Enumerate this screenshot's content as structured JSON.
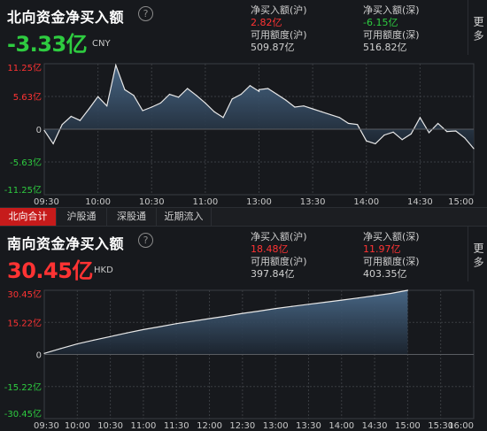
{
  "north": {
    "title": "北向资金净买入额",
    "help_icon": "?",
    "value": "-3.33亿",
    "currency": "CNY",
    "value_color": "#2ecc40",
    "stats": {
      "sh_net_label": "净买入额(沪)",
      "sh_net_value": "2.82亿",
      "sz_net_label": "净买入额(深)",
      "sz_net_value": "-6.15亿",
      "sh_quota_label": "可用额度(沪)",
      "sh_quota_value": "509.87亿",
      "sz_quota_label": "可用额度(深)",
      "sz_quota_value": "516.82亿"
    },
    "more_label": "更多"
  },
  "tabs": [
    {
      "label": "北向合计",
      "active": true
    },
    {
      "label": "沪股通",
      "active": false
    },
    {
      "label": "深股通",
      "active": false
    },
    {
      "label": "近期流入",
      "active": false
    }
  ],
  "south": {
    "title": "南向资金净买入额",
    "help_icon": "?",
    "value": "30.45亿",
    "currency": "HKD",
    "value_color": "#ff3333",
    "stats": {
      "sh_net_label": "净买入额(沪)",
      "sh_net_value": "18.48亿",
      "sz_net_label": "净买入额(深)",
      "sz_net_value": "11.97亿",
      "sh_quota_label": "可用额度(沪)",
      "sh_quota_value": "397.84亿",
      "sz_quota_label": "可用额度(深)",
      "sz_quota_value": "403.35亿"
    },
    "more_label": "更多"
  },
  "colors": {
    "positive": "#ff3333",
    "negative": "#2ecc40",
    "line": "#e8e8e8",
    "fill_top": "#4a6a8a",
    "fill_bottom": "#1c2530",
    "grid": "#3a3d42",
    "axis_text": "#c8c8c8"
  },
  "chart_data": [
    {
      "type": "area",
      "title": "",
      "x": [
        "09:30",
        "09:35",
        "09:40",
        "09:45",
        "09:50",
        "09:55",
        "10:00",
        "10:05",
        "10:10",
        "10:15",
        "10:20",
        "10:25",
        "10:30",
        "10:35",
        "10:40",
        "10:45",
        "10:50",
        "10:55",
        "11:00",
        "11:05",
        "11:10",
        "11:15",
        "11:20",
        "11:25",
        "11:30",
        "13:00",
        "13:05",
        "13:10",
        "13:15",
        "13:20",
        "13:25",
        "13:30",
        "13:35",
        "13:40",
        "13:45",
        "13:50",
        "13:55",
        "14:00",
        "14:05",
        "14:10",
        "14:15",
        "14:20",
        "14:25",
        "14:30",
        "14:35",
        "14:40",
        "14:45",
        "14:50",
        "14:55",
        "15:00"
      ],
      "values": [
        -0.2,
        -2.5,
        0.8,
        2.2,
        1.5,
        3.5,
        5.6,
        4.0,
        11.0,
        6.8,
        5.8,
        3.2,
        3.8,
        4.5,
        6.0,
        5.5,
        7.0,
        5.8,
        4.5,
        3.0,
        2.0,
        5.2,
        6.0,
        7.5,
        6.5,
        6.8,
        7.0,
        6.0,
        5.0,
        3.8,
        4.0,
        3.5,
        3.0,
        2.5,
        2.0,
        1.0,
        0.8,
        -2.0,
        -2.5,
        -1.0,
        -0.5,
        -1.8,
        -0.8,
        2.0,
        -0.6,
        1.0,
        -0.4,
        -0.3,
        -1.5,
        -3.33
      ],
      "xticks": [
        "09:30",
        "10:00",
        "10:30",
        "11:00",
        "13:00",
        "13:30",
        "14:00",
        "14:30",
        "15:00"
      ],
      "yticks": [
        "11.25亿",
        "5.63亿",
        "0",
        "-5.63亿",
        "-11.25亿"
      ],
      "ylim": [
        -11.25,
        11.25
      ],
      "unit": "亿",
      "grid": true
    },
    {
      "type": "area",
      "title": "",
      "x": [
        "09:30",
        "09:45",
        "10:00",
        "10:15",
        "10:30",
        "10:45",
        "11:00",
        "11:15",
        "11:30",
        "11:45",
        "12:00",
        "12:15",
        "12:30",
        "12:45",
        "13:00",
        "13:15",
        "13:30",
        "13:45",
        "14:00",
        "14:15",
        "14:30",
        "14:45",
        "15:00"
      ],
      "values": [
        0.5,
        2.8,
        5.0,
        6.8,
        8.5,
        10.2,
        11.8,
        13.2,
        14.6,
        15.8,
        17.0,
        18.2,
        19.5,
        20.6,
        21.8,
        22.8,
        23.8,
        24.8,
        25.8,
        26.8,
        27.9,
        29.0,
        30.45
      ],
      "xticks": [
        "09:30",
        "10:00",
        "10:30",
        "11:00",
        "11:30",
        "12:00",
        "12:30",
        "13:00",
        "13:30",
        "14:00",
        "14:30",
        "15:00",
        "15:30",
        "16:00"
      ],
      "yticks": [
        "30.45亿",
        "15.22亿",
        "0",
        "-15.22亿",
        "-30.45亿"
      ],
      "ylim": [
        -30.45,
        30.45
      ],
      "xrange": [
        "09:30",
        "16:00"
      ],
      "unit": "亿",
      "grid": true
    }
  ]
}
